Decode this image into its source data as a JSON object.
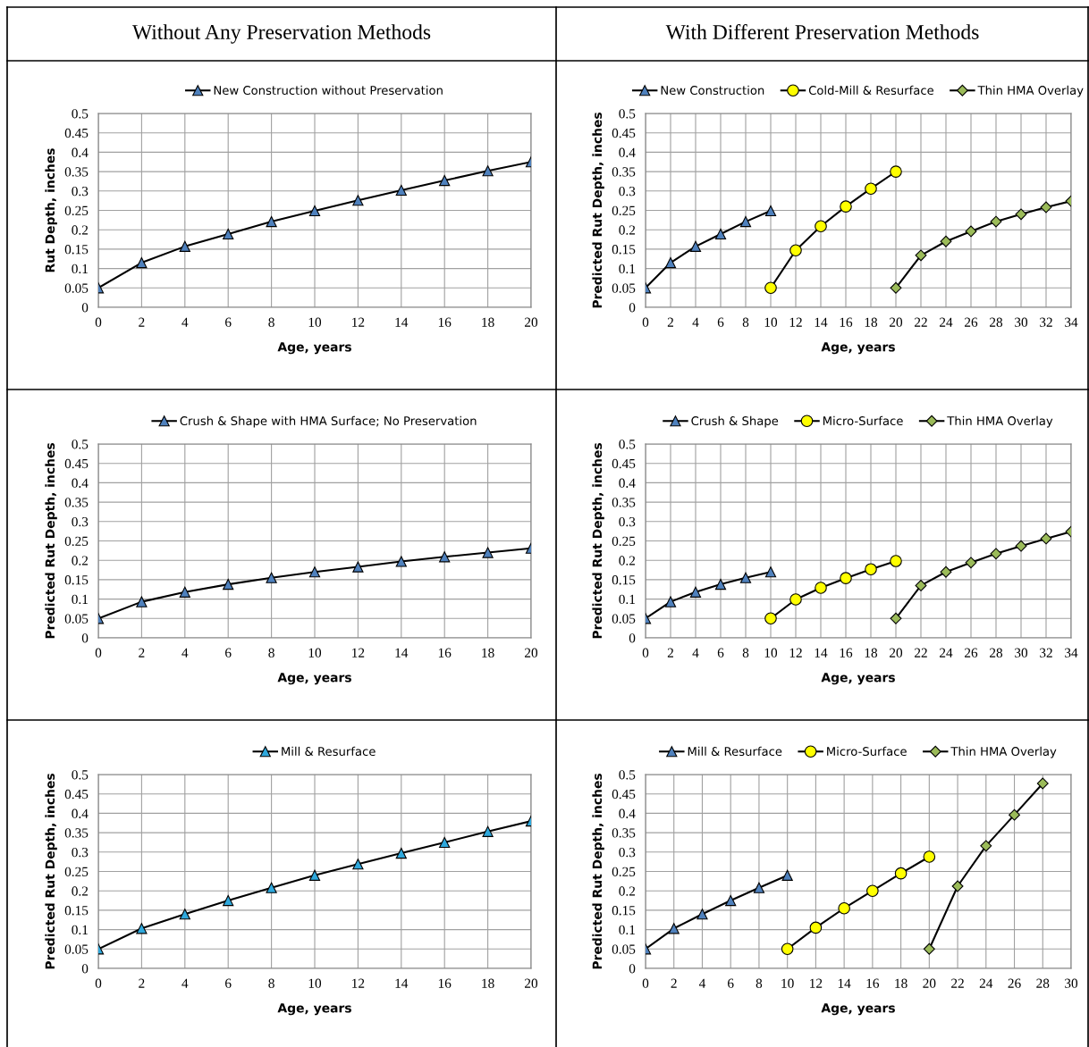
{
  "chart_data": [
    {
      "type": "line",
      "title": "Without Any Preservation Methods",
      "xlabel": "Age, years",
      "ylabel": "Rut Depth, inches",
      "xlim": [
        0,
        20
      ],
      "xticks": [
        0,
        2,
        4,
        6,
        8,
        10,
        12,
        14,
        16,
        18,
        20
      ],
      "ylim": [
        0,
        0.5
      ],
      "yticks": [
        0,
        0.05,
        0.1,
        0.15,
        0.2,
        0.25,
        0.3,
        0.35,
        0.4,
        0.45,
        0.5
      ],
      "grid": true,
      "legend": "top",
      "series": [
        {
          "name": "New Construction without Preservation",
          "color": "#4f81bd",
          "marker": "triangle",
          "x": [
            0,
            2,
            4,
            6,
            8,
            10,
            12,
            14,
            16,
            18,
            20
          ],
          "values": [
            0.05,
            0.115,
            0.157,
            0.189,
            0.221,
            0.249,
            0.276,
            0.302,
            0.327,
            0.352,
            0.375
          ]
        }
      ]
    },
    {
      "type": "line",
      "title": "With Different Preservation Methods",
      "xlabel": "Age, years",
      "ylabel": "Predicted Rut Depth, inches",
      "xlim": [
        0,
        34
      ],
      "xticks": [
        0,
        2,
        4,
        6,
        8,
        10,
        12,
        14,
        16,
        18,
        20,
        22,
        24,
        26,
        28,
        30,
        32,
        34
      ],
      "ylim": [
        0,
        0.5
      ],
      "yticks": [
        0,
        0.05,
        0.1,
        0.15,
        0.2,
        0.25,
        0.3,
        0.35,
        0.4,
        0.45,
        0.5
      ],
      "grid": true,
      "legend": "top",
      "series": [
        {
          "name": "New Construction",
          "color": "#4f81bd",
          "marker": "triangle",
          "x": [
            0,
            2,
            4,
            6,
            8,
            10
          ],
          "values": [
            0.05,
            0.115,
            0.157,
            0.189,
            0.221,
            0.249
          ]
        },
        {
          "name": "Cold-Mill & Resurface",
          "color": "#ffff00",
          "marker": "circle",
          "x": [
            10,
            12,
            14,
            16,
            18,
            20
          ],
          "values": [
            0.05,
            0.147,
            0.209,
            0.26,
            0.306,
            0.35
          ]
        },
        {
          "name": "Thin HMA Overlay",
          "color": "#9bbb59",
          "marker": "diamond",
          "x": [
            20,
            22,
            24,
            26,
            28,
            30,
            32,
            34
          ],
          "values": [
            0.05,
            0.134,
            0.17,
            0.196,
            0.221,
            0.24,
            0.258,
            0.274
          ]
        }
      ]
    },
    {
      "type": "line",
      "xlabel": "Age, years",
      "ylabel": "Predicted Rut Depth, inches",
      "xlim": [
        0,
        20
      ],
      "xticks": [
        0,
        2,
        4,
        6,
        8,
        10,
        12,
        14,
        16,
        18,
        20
      ],
      "ylim": [
        0,
        0.5
      ],
      "yticks": [
        0,
        0.05,
        0.1,
        0.15,
        0.2,
        0.25,
        0.3,
        0.35,
        0.4,
        0.45,
        0.5
      ],
      "grid": true,
      "legend": "top",
      "series": [
        {
          "name": "Crush & Shape with HMA Surface; No Preservation",
          "color": "#4f81bd",
          "marker": "triangle",
          "x": [
            0,
            2,
            4,
            6,
            8,
            10,
            12,
            14,
            16,
            18,
            20
          ],
          "values": [
            0.05,
            0.093,
            0.118,
            0.138,
            0.155,
            0.17,
            0.183,
            0.197,
            0.209,
            0.22,
            0.231
          ]
        }
      ]
    },
    {
      "type": "line",
      "xlabel": "Age, years",
      "ylabel": "Predicted Rut Depth, inches",
      "xlim": [
        0,
        34
      ],
      "xticks": [
        0,
        2,
        4,
        6,
        8,
        10,
        12,
        14,
        16,
        18,
        20,
        22,
        24,
        26,
        28,
        30,
        32,
        34
      ],
      "ylim": [
        0,
        0.5
      ],
      "yticks": [
        0,
        0.05,
        0.1,
        0.15,
        0.2,
        0.25,
        0.3,
        0.35,
        0.4,
        0.45,
        0.5
      ],
      "grid": true,
      "legend": "top",
      "series": [
        {
          "name": "Crush & Shape",
          "color": "#4f81bd",
          "marker": "triangle",
          "x": [
            0,
            2,
            4,
            6,
            8,
            10
          ],
          "values": [
            0.05,
            0.093,
            0.118,
            0.138,
            0.155,
            0.17
          ]
        },
        {
          "name": "Micro-Surface",
          "color": "#ffff00",
          "marker": "circle",
          "x": [
            10,
            12,
            14,
            16,
            18,
            20
          ],
          "values": [
            0.05,
            0.099,
            0.129,
            0.154,
            0.177,
            0.198
          ]
        },
        {
          "name": "Thin HMA Overlay",
          "color": "#9bbb59",
          "marker": "diamond",
          "x": [
            20,
            22,
            24,
            26,
            28,
            30,
            32,
            34
          ],
          "values": [
            0.05,
            0.135,
            0.17,
            0.194,
            0.217,
            0.237,
            0.256,
            0.274
          ]
        }
      ]
    },
    {
      "type": "line",
      "xlabel": "Age, years",
      "ylabel": "Predicted Rut Depth, inches",
      "xlim": [
        0,
        20
      ],
      "xticks": [
        0,
        2,
        4,
        6,
        8,
        10,
        12,
        14,
        16,
        18,
        20
      ],
      "ylim": [
        0,
        0.5
      ],
      "yticks": [
        0,
        0.05,
        0.1,
        0.15,
        0.2,
        0.25,
        0.3,
        0.35,
        0.4,
        0.45,
        0.5
      ],
      "grid": true,
      "legend": "top",
      "series": [
        {
          "name": "Mill & Resurface",
          "color": "#2fa8dc",
          "marker": "triangle",
          "x": [
            0,
            2,
            4,
            6,
            8,
            10,
            12,
            14,
            16,
            18,
            20
          ],
          "values": [
            0.05,
            0.103,
            0.14,
            0.175,
            0.208,
            0.24,
            0.269,
            0.297,
            0.325,
            0.353,
            0.38
          ]
        }
      ]
    },
    {
      "type": "line",
      "xlabel": "Age, years",
      "ylabel": "Predicted Rut Depth, inches",
      "xlim": [
        0,
        30
      ],
      "xticks": [
        0,
        2,
        4,
        6,
        8,
        10,
        12,
        14,
        16,
        18,
        20,
        22,
        24,
        26,
        28,
        30
      ],
      "ylim": [
        0,
        0.5
      ],
      "yticks": [
        0,
        0.05,
        0.1,
        0.15,
        0.2,
        0.25,
        0.3,
        0.35,
        0.4,
        0.45,
        0.5
      ],
      "grid": true,
      "legend": "top",
      "series": [
        {
          "name": "Mill & Resurface",
          "color": "#4f81bd",
          "marker": "triangle",
          "x": [
            0,
            2,
            4,
            6,
            8,
            10
          ],
          "values": [
            0.05,
            0.103,
            0.14,
            0.175,
            0.208,
            0.24
          ]
        },
        {
          "name": "Micro-Surface",
          "color": "#ffff00",
          "marker": "circle",
          "x": [
            10,
            12,
            14,
            16,
            18,
            20
          ],
          "values": [
            0.05,
            0.105,
            0.155,
            0.2,
            0.245,
            0.288
          ]
        },
        {
          "name": "Thin HMA Overlay",
          "color": "#9bbb59",
          "marker": "diamond",
          "x": [
            20,
            22,
            24,
            26,
            28
          ],
          "values": [
            0.05,
            0.212,
            0.316,
            0.396,
            0.477
          ]
        }
      ]
    }
  ]
}
